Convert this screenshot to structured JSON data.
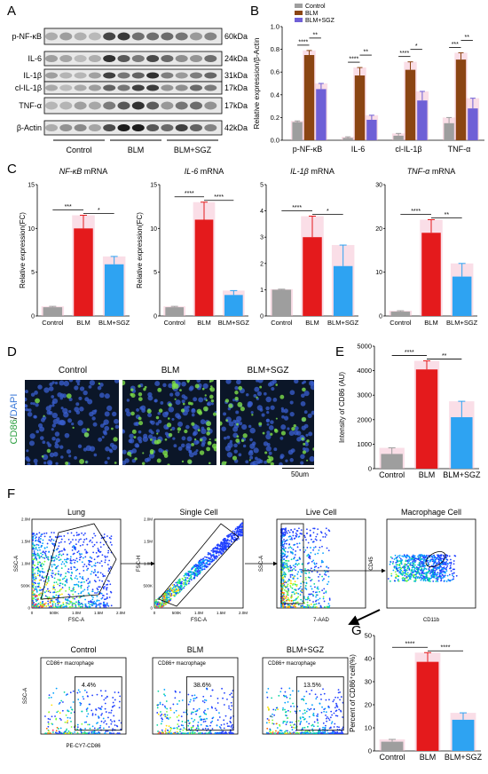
{
  "panels": {
    "A": "A",
    "B": "B",
    "C": "C",
    "D": "D",
    "E": "E",
    "F": "F",
    "G": "G"
  },
  "blot": {
    "proteins": [
      "p-NF-κB",
      "IL-6",
      "IL-1β",
      "cl-IL-1β",
      "TNF-α",
      "β-Actin"
    ],
    "sizes": [
      "60kDa",
      "24kDa",
      "31kDa",
      "17kDa",
      "17kDa",
      "42kDa"
    ],
    "groups": [
      "Control",
      "BLM",
      "BLM+SGZ"
    ]
  },
  "colors": {
    "control": "#9e9e9e",
    "blm": "#8b4513",
    "sgz": "#6f5fd6",
    "c_blm": "#e41a1c",
    "c_sgz": "#2ea3f2",
    "pink": "#f4b6c9"
  },
  "chart_data": [
    {
      "type": "bar",
      "panel": "B",
      "categories": [
        "p-NF-κB",
        "IL-6",
        "cl-IL-1β",
        "TNF-α"
      ],
      "series": [
        {
          "name": "Control",
          "values": [
            0.16,
            0.02,
            0.04,
            0.15
          ]
        },
        {
          "name": "BLM",
          "values": [
            0.75,
            0.57,
            0.62,
            0.71
          ]
        },
        {
          "name": "BLM+SGZ",
          "values": [
            0.45,
            0.18,
            0.35,
            0.28
          ]
        }
      ],
      "errors": [
        [
          0.01,
          0.01,
          0.02,
          0.05
        ],
        [
          0.04,
          0.07,
          0.07,
          0.06
        ],
        [
          0.05,
          0.04,
          0.08,
          0.09
        ]
      ],
      "ylabel": "Relative expression/β-Actin",
      "ylim": [
        0,
        1.0
      ],
      "yticks": [
        "0.0",
        "0.2",
        "0.4",
        "0.6",
        "0.8",
        "1.0"
      ],
      "sig": [
        [
          "****",
          "**"
        ],
        [
          "****",
          "**"
        ],
        [
          "****",
          "*"
        ],
        [
          "***",
          "**"
        ]
      ]
    },
    {
      "type": "bar",
      "panel": "C1",
      "title_italic": "NF-κB",
      "title_rest": " mRNA",
      "categories": [
        "Control",
        "BLM",
        "BLM+SGZ"
      ],
      "values": [
        1,
        10,
        5.9
      ],
      "errors": [
        0.1,
        1.5,
        0.9
      ],
      "ylabel": "Relative expression(FC)",
      "ylim": [
        0,
        15
      ],
      "yticks": [
        "0",
        "5",
        "10",
        "15"
      ],
      "sig": [
        "***",
        "*"
      ]
    },
    {
      "type": "bar",
      "panel": "C2",
      "title_italic": "IL-6",
      "title_rest": " mRNA",
      "categories": [
        "Control",
        "BLM",
        "BLM+SGZ"
      ],
      "values": [
        1,
        11,
        2.4
      ],
      "errors": [
        0.1,
        2.0,
        0.5
      ],
      "ylabel": "Relative expression(FC)",
      "ylim": [
        0,
        15
      ],
      "yticks": [
        "0",
        "5",
        "10",
        "15"
      ],
      "sig": [
        "****",
        "****"
      ]
    },
    {
      "type": "bar",
      "panel": "C3",
      "title_italic": "IL-1β",
      "title_rest": " mRNA",
      "categories": [
        "Control",
        "BLM",
        "BLM+SGZ"
      ],
      "values": [
        1,
        3.0,
        1.9
      ],
      "errors": [
        0.02,
        0.8,
        0.8
      ],
      "ylabel": "",
      "ylim": [
        0,
        5
      ],
      "yticks": [
        "0",
        "1",
        "2",
        "3",
        "4",
        "5"
      ],
      "sig": [
        "****",
        "*"
      ]
    },
    {
      "type": "bar",
      "panel": "C4",
      "title_italic": "TNF-α",
      "title_rest": " mRNA",
      "categories": [
        "Control",
        "BLM",
        "BLM+SGZ"
      ],
      "values": [
        1,
        19,
        9
      ],
      "errors": [
        0.2,
        3,
        3
      ],
      "ylabel": "",
      "ylim": [
        0,
        30
      ],
      "yticks": [
        "0",
        "10",
        "20",
        "30"
      ],
      "sig": [
        "****",
        "**"
      ]
    },
    {
      "type": "bar",
      "panel": "E",
      "categories": [
        "Control",
        "BLM",
        "BLM+SGZ"
      ],
      "values": [
        600,
        4050,
        2100
      ],
      "errors": [
        250,
        350,
        650
      ],
      "ylabel": "Intensity of CD86 (AU)",
      "ylim": [
        0,
        5000
      ],
      "yticks": [
        "0",
        "1000",
        "2000",
        "3000",
        "4000",
        "5000"
      ],
      "sig": [
        "****",
        "**"
      ]
    },
    {
      "type": "bar",
      "panel": "G",
      "categories": [
        "Control",
        "BLM",
        "BLM+SGZ"
      ],
      "values": [
        4,
        38.6,
        13.5
      ],
      "errors": [
        1,
        4,
        3
      ],
      "ylabel": "Percent of CD86⁺cell(%)",
      "ylim": [
        0,
        50
      ],
      "yticks": [
        "0",
        "10",
        "20",
        "30",
        "40",
        "50"
      ],
      "sig": [
        "****",
        "****"
      ]
    }
  ],
  "micro": {
    "labels": [
      "Control",
      "BLM",
      "BLM+SGZ"
    ],
    "ylabel_green": "CD86",
    "ylabel_sep": "/",
    "ylabel_blue": "DAPI",
    "scale": "50um"
  },
  "flow": {
    "gates": [
      {
        "title": "Lung",
        "x": "FSC-A",
        "y": "SSC-A"
      },
      {
        "title": "Single Cell",
        "x": "FSC-A",
        "y": "FSC-H"
      },
      {
        "title": "Live Cell",
        "x": "7-AAD",
        "y": "SSC-A"
      },
      {
        "title": "Macrophage Cell",
        "x": "CD11b",
        "y": "CD45"
      }
    ],
    "ticks_lin": [
      "0",
      "500K",
      "1.0M",
      "1.5M",
      "2.0M"
    ],
    "cd86": [
      {
        "title": "Control",
        "pct": "4.4%"
      },
      {
        "title": "BLM",
        "pct": "38.6%"
      },
      {
        "title": "BLM+SGZ",
        "pct": "13.5%"
      }
    ],
    "cd86_label": "CD86+ macrophage",
    "x_axis": "PE-CY7-CD86",
    "y_axis": "SSC-A"
  }
}
